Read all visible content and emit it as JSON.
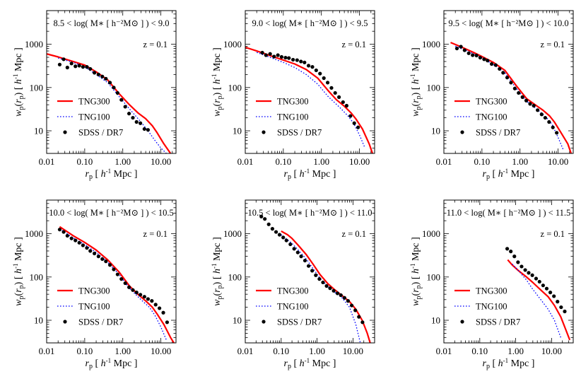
{
  "chart_data": [
    {
      "type": "line",
      "bin_text": "8.5 < log( M∗ [ h⁻²M⊙ ] ) < 9.0",
      "redshift_text": "z = 0.1",
      "xlabel": "r_p [h^-1 Mpc]",
      "ylabel": "w_p(r_p) [h^-1 Mpc]",
      "xscale": "log",
      "yscale": "log",
      "xlim": [
        0.01,
        25
      ],
      "ylim": [
        3,
        6000
      ],
      "series": [
        {
          "name": "TNG300",
          "style": "solid",
          "color": "#ff0000",
          "x": [
            0.01,
            0.02,
            0.05,
            0.1,
            0.2,
            0.4,
            0.8,
            1.5,
            2.5,
            4,
            6,
            8,
            12,
            18
          ],
          "y": [
            600,
            510,
            400,
            330,
            230,
            150,
            72,
            40,
            26,
            19,
            13,
            9,
            5,
            3
          ]
        },
        {
          "name": "TNG100",
          "style": "dotted",
          "color": "#0000ff",
          "x": [
            0.02,
            0.05,
            0.1,
            0.2,
            0.4,
            0.8,
            1.5,
            3,
            5,
            7,
            10,
            14
          ],
          "y": [
            480,
            380,
            300,
            200,
            130,
            62,
            32,
            16,
            9,
            6,
            4,
            3
          ]
        },
        {
          "name": "SDSS / DR7",
          "style": "points",
          "color": "#000000",
          "x": [
            0.022,
            0.028,
            0.035,
            0.045,
            0.057,
            0.072,
            0.09,
            0.114,
            0.14,
            0.18,
            0.23,
            0.29,
            0.36,
            0.46,
            0.58,
            0.73,
            0.92,
            1.16,
            1.46,
            1.84,
            2.3,
            2.9,
            3.7,
            4.6
          ],
          "y": [
            340,
            450,
            290,
            360,
            310,
            320,
            300,
            300,
            270,
            220,
            200,
            180,
            160,
            130,
            100,
            75,
            52,
            36,
            25,
            20,
            16,
            15,
            11,
            10.5
          ]
        }
      ]
    },
    {
      "type": "line",
      "bin_text": "9.0 < log( M∗ [ h⁻²M⊙ ] ) < 9.5",
      "redshift_text": "z = 0.1",
      "xlabel": "r_p [h^-1 Mpc]",
      "ylabel": "w_p(r_p) [h^-1 Mpc]",
      "xscale": "log",
      "yscale": "log",
      "xlim": [
        0.01,
        25
      ],
      "ylim": [
        3,
        6000
      ],
      "series": [
        {
          "name": "TNG300",
          "style": "solid",
          "color": "#ff0000",
          "x": [
            0.01,
            0.02,
            0.05,
            0.1,
            0.2,
            0.4,
            0.8,
            1.5,
            2.5,
            4,
            6,
            8,
            12,
            18,
            22
          ],
          "y": [
            850,
            700,
            530,
            430,
            350,
            260,
            165,
            85,
            52,
            37,
            26,
            19,
            11,
            5,
            3
          ]
        },
        {
          "name": "TNG100",
          "style": "dotted",
          "color": "#0000ff",
          "x": [
            0.02,
            0.05,
            0.1,
            0.2,
            0.4,
            0.8,
            1.5,
            3,
            5,
            7,
            10,
            14
          ],
          "y": [
            650,
            480,
            380,
            290,
            200,
            120,
            62,
            35,
            22,
            15,
            8,
            4
          ]
        },
        {
          "name": "SDSS / DR7",
          "style": "points",
          "color": "#000000",
          "x": [
            0.028,
            0.035,
            0.045,
            0.057,
            0.072,
            0.09,
            0.114,
            0.14,
            0.18,
            0.23,
            0.29,
            0.36,
            0.46,
            0.58,
            0.73,
            0.92,
            1.16,
            1.46,
            1.84,
            2.3,
            2.9,
            3.7,
            4.6,
            5.8,
            7.3,
            9.2
          ],
          "y": [
            640,
            560,
            600,
            520,
            560,
            510,
            490,
            480,
            440,
            430,
            400,
            380,
            320,
            300,
            250,
            210,
            165,
            130,
            98,
            75,
            60,
            46,
            38,
            22,
            15,
            12
          ]
        }
      ]
    },
    {
      "type": "line",
      "bin_text": "9.5 < log( M∗ [ h⁻²M⊙ ] ) < 10.0",
      "redshift_text": "z = 0.1",
      "xlabel": "r_p [h^-1 Mpc]",
      "ylabel": "w_p(r_p) [h^-1 Mpc]",
      "xscale": "log",
      "yscale": "log",
      "xlim": [
        0.01,
        25
      ],
      "ylim": [
        3,
        6000
      ],
      "series": [
        {
          "name": "TNG300",
          "style": "solid",
          "color": "#ff0000",
          "x": [
            0.015,
            0.03,
            0.06,
            0.1,
            0.2,
            0.4,
            0.8,
            1.5,
            2.5,
            4,
            6,
            8,
            12,
            18,
            22
          ],
          "y": [
            1100,
            850,
            650,
            520,
            380,
            250,
            110,
            55,
            40,
            30,
            22,
            16,
            9,
            5,
            3
          ]
        },
        {
          "name": "TNG100",
          "style": "dotted",
          "color": "#0000ff",
          "x": [
            0.02,
            0.05,
            0.1,
            0.2,
            0.4,
            0.8,
            1.5,
            3,
            5,
            7,
            10,
            14
          ],
          "y": [
            900,
            650,
            480,
            340,
            220,
            95,
            48,
            30,
            20,
            14,
            7,
            3.5
          ]
        },
        {
          "name": "SDSS / DR7",
          "style": "points",
          "color": "#000000",
          "x": [
            0.022,
            0.028,
            0.035,
            0.045,
            0.057,
            0.072,
            0.09,
            0.114,
            0.14,
            0.18,
            0.23,
            0.29,
            0.36,
            0.46,
            0.58,
            0.73,
            0.92,
            1.16,
            1.46,
            1.84,
            2.3,
            2.9,
            3.7,
            4.6,
            5.8,
            7.3,
            9.2
          ],
          "y": [
            800,
            880,
            730,
            620,
            560,
            550,
            490,
            450,
            420,
            350,
            330,
            270,
            220,
            170,
            130,
            95,
            75,
            60,
            50,
            42,
            38,
            30,
            24,
            20,
            16,
            12,
            9
          ]
        }
      ]
    },
    {
      "type": "line",
      "bin_text": "10.0 < log( M∗ [ h⁻²M⊙ ] ) < 10.5",
      "redshift_text": "z = 0.1",
      "xlabel": "r_p [h^-1 Mpc]",
      "ylabel": "w_p(r_p) [h^-1 Mpc]",
      "xscale": "log",
      "yscale": "log",
      "xlim": [
        0.01,
        25
      ],
      "ylim": [
        3,
        6000
      ],
      "series": [
        {
          "name": "TNG300",
          "style": "solid",
          "color": "#ff0000",
          "x": [
            0.022,
            0.05,
            0.1,
            0.2,
            0.4,
            0.8,
            1.5,
            2.5,
            4,
            6,
            8,
            12,
            18,
            22
          ],
          "y": [
            1450,
            900,
            630,
            420,
            250,
            130,
            62,
            40,
            28,
            20,
            14,
            8,
            4,
            3
          ]
        },
        {
          "name": "TNG100",
          "style": "dotted",
          "color": "#0000ff",
          "x": [
            0.022,
            0.05,
            0.1,
            0.2,
            0.4,
            0.8,
            1.5,
            3,
            5,
            7,
            10,
            14
          ],
          "y": [
            1300,
            800,
            560,
            370,
            220,
            115,
            55,
            30,
            20,
            13,
            7,
            3.5
          ]
        },
        {
          "name": "SDSS / DR7",
          "style": "points",
          "color": "#000000",
          "x": [
            0.022,
            0.028,
            0.035,
            0.045,
            0.057,
            0.072,
            0.09,
            0.114,
            0.14,
            0.18,
            0.23,
            0.29,
            0.36,
            0.46,
            0.58,
            0.73,
            0.92,
            1.16,
            1.46,
            1.84,
            2.3,
            2.9,
            3.7,
            4.6,
            5.8,
            7.3,
            9.2,
            11.6,
            14.6
          ],
          "y": [
            1250,
            1100,
            900,
            780,
            700,
            620,
            540,
            470,
            400,
            350,
            300,
            260,
            230,
            190,
            150,
            115,
            90,
            72,
            58,
            50,
            44,
            39,
            35,
            31,
            28,
            23,
            19,
            15,
            9
          ]
        }
      ]
    },
    {
      "type": "line",
      "bin_text": "10.5 < log( M∗ [ h⁻²M⊙ ] ) < 11.0",
      "redshift_text": "z = 0.1",
      "xlabel": "r_p [h^-1 Mpc]",
      "ylabel": "w_p(r_p) [h^-1 Mpc]",
      "xscale": "log",
      "yscale": "log",
      "xlim": [
        0.01,
        40
      ],
      "ylim": [
        3,
        6000
      ],
      "series": [
        {
          "name": "TNG300",
          "style": "solid",
          "color": "#ff0000",
          "x": [
            0.1,
            0.15,
            0.2,
            0.3,
            0.5,
            0.8,
            1.2,
            2,
            3,
            5,
            8,
            12,
            18,
            25,
            30
          ],
          "y": [
            1150,
            950,
            780,
            540,
            330,
            190,
            115,
            70,
            52,
            37,
            27,
            18,
            10,
            5,
            3
          ]
        },
        {
          "name": "TNG100",
          "style": "dotted",
          "color": "#0000ff",
          "x": [
            0.1,
            0.2,
            0.3,
            0.5,
            0.8,
            1.2,
            2,
            3,
            5,
            8,
            12,
            16
          ],
          "y": [
            950,
            600,
            420,
            260,
            150,
            95,
            60,
            45,
            33,
            20,
            8,
            3
          ]
        },
        {
          "name": "SDSS / DR7",
          "style": "points",
          "color": "#000000",
          "x": [
            0.028,
            0.035,
            0.045,
            0.057,
            0.072,
            0.09,
            0.114,
            0.14,
            0.18,
            0.23,
            0.29,
            0.36,
            0.46,
            0.58,
            0.73,
            0.92,
            1.16,
            1.46,
            1.84,
            2.3,
            2.9,
            3.7,
            4.6,
            5.8,
            7.3,
            9.2,
            11.6,
            14.6,
            18.4
          ],
          "y": [
            2500,
            2200,
            1650,
            1300,
            1100,
            950,
            820,
            700,
            570,
            450,
            370,
            300,
            240,
            180,
            140,
            110,
            90,
            75,
            62,
            55,
            48,
            42,
            38,
            33,
            28,
            22,
            17,
            12,
            9
          ]
        }
      ]
    },
    {
      "type": "line",
      "bin_text": "11.0 < log( M∗ [ h⁻²M⊙ ] ) < 11.5",
      "redshift_text": "z = 0.1",
      "xlabel": "r_p [h^-1 Mpc]",
      "ylabel": "w_p(r_p) [h^-1 Mpc]",
      "xscale": "log",
      "yscale": "log",
      "xlim": [
        0.01,
        40
      ],
      "ylim": [
        3,
        6000
      ],
      "series": [
        {
          "name": "TNG300",
          "style": "solid",
          "color": "#ff0000",
          "x": [
            0.6,
            0.8,
            1.2,
            2,
            3,
            5,
            8,
            12,
            18,
            25,
            32
          ],
          "y": [
            250,
            190,
            140,
            100,
            75,
            50,
            35,
            22,
            12,
            6,
            3.5
          ]
        },
        {
          "name": "TNG100",
          "style": "dotted",
          "color": "#0000ff",
          "x": [
            0.8,
            1.2,
            2,
            3,
            5,
            8,
            12,
            18
          ],
          "y": [
            200,
            140,
            85,
            52,
            30,
            18,
            10,
            4
          ]
        },
        {
          "name": "SDSS / DR7",
          "style": "points",
          "color": "#000000",
          "x": [
            0.58,
            0.73,
            0.92,
            1.16,
            1.46,
            1.84,
            2.3,
            2.9,
            3.7,
            4.6,
            5.8,
            7.3,
            9.2,
            11.6,
            14.6,
            18.4,
            23.2
          ],
          "y": [
            450,
            390,
            300,
            220,
            175,
            145,
            125,
            110,
            92,
            78,
            64,
            54,
            44,
            36,
            27,
            20,
            16
          ]
        }
      ]
    }
  ],
  "legend": {
    "tng300_label": "TNG300",
    "tng100_label": "TNG100",
    "sdss_label": "SDSS / DR7"
  },
  "colors": {
    "tng300": "#ff0000",
    "tng100": "#0000ff",
    "sdss": "#000000"
  }
}
